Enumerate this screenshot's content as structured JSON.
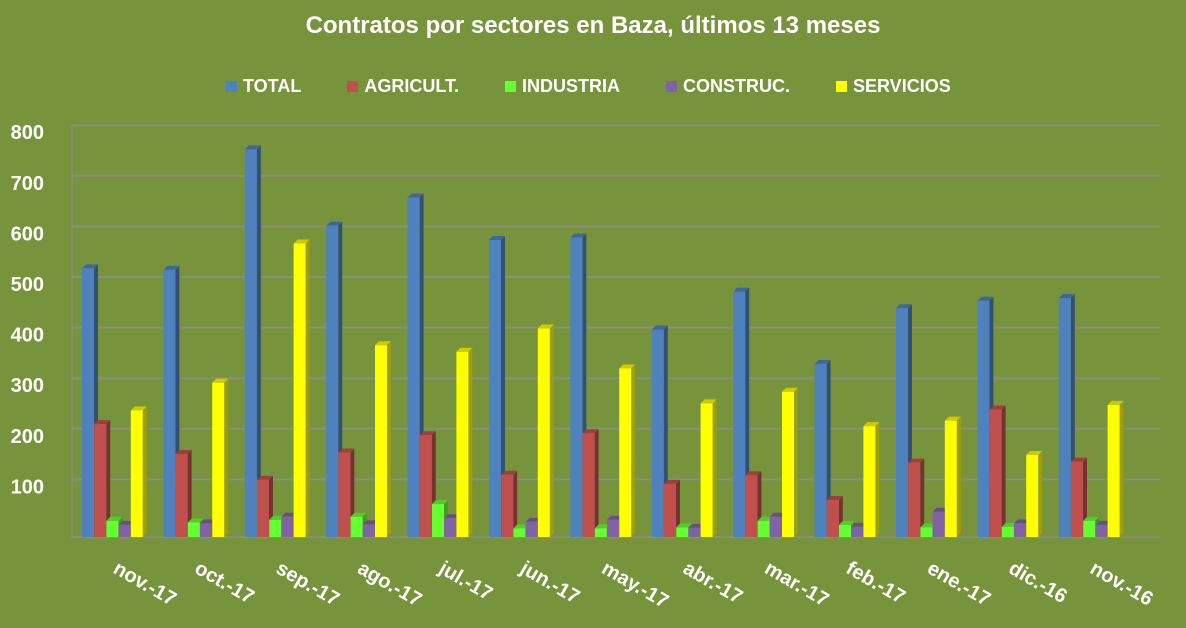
{
  "chart_data": {
    "type": "bar",
    "title": "Contratos por sectores en Baza, últimos 13 meses",
    "categories": [
      "nov.-17",
      "oct.-17",
      "sep.-17",
      "ago.-17",
      "jul.-17",
      "jun.-17",
      "may.-17",
      "abr.-17",
      "mar.-17",
      "feb.-17",
      "ene.-17",
      "dic.-16",
      "nov.-16"
    ],
    "series": [
      {
        "name": "TOTAL",
        "color": "#4F81BD",
        "values": [
          531,
          528,
          766,
          615,
          671,
          587,
          592,
          410,
          485,
          342,
          452,
          467,
          472
        ]
      },
      {
        "name": "AGRICULT.",
        "color": "#C0504D",
        "values": [
          223,
          164,
          113,
          167,
          201,
          123,
          205,
          105,
          122,
          73,
          147,
          252,
          149
        ]
      },
      {
        "name": "INDUSTRIA",
        "color": "#66FF33",
        "values": [
          32,
          29,
          34,
          40,
          65,
          17,
          17,
          19,
          32,
          24,
          19,
          20,
          32
        ]
      },
      {
        "name": "CONSTRUC.",
        "color": "#8064A2",
        "values": [
          24,
          27,
          40,
          25,
          37,
          30,
          34,
          18,
          40,
          20,
          50,
          27,
          24
        ]
      },
      {
        "name": "SERVICIOS",
        "color": "#FFFF00",
        "values": [
          250,
          305,
          580,
          379,
          366,
          412,
          333,
          264,
          287,
          219,
          230,
          162,
          261
        ]
      }
    ],
    "yticks": [
      100,
      200,
      300,
      400,
      500,
      600,
      700,
      800
    ],
    "ylim": [
      0,
      800
    ],
    "grid": true,
    "legend": "top",
    "style": "3d-clustered-column",
    "background": "#77933C"
  }
}
